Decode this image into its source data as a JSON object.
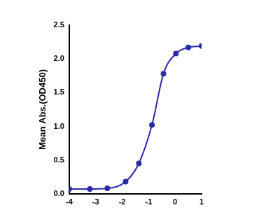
{
  "chart_data": {
    "type": "line",
    "y_label": "Mean Abs.(OD450)",
    "x": [
      -4,
      -3.22,
      -2.56,
      -1.87,
      -1.37,
      -0.875,
      -0.44,
      0.03,
      0.5,
      1
    ],
    "values": [
      0.07,
      0.07,
      0.08,
      0.18,
      0.45,
      1.02,
      1.78,
      2.08,
      2.17,
      2.19
    ],
    "color": "#2b2ba8",
    "marker": "circle",
    "xlim": [
      -4,
      1
    ],
    "xticks": [
      -4,
      -3,
      -2,
      -1,
      0,
      1
    ],
    "ylim": [
      0,
      2.5
    ],
    "yticks": [
      {
        "value": 0,
        "label": "0.0"
      },
      {
        "value": 0.5,
        "label": "0.5"
      },
      {
        "value": 1,
        "label": "1.0"
      },
      {
        "value": 1.5,
        "label": "1.5"
      },
      {
        "value": 2,
        "label": "2.0"
      },
      {
        "value": 2.5,
        "label": "2.5"
      }
    ],
    "grid": false
  }
}
